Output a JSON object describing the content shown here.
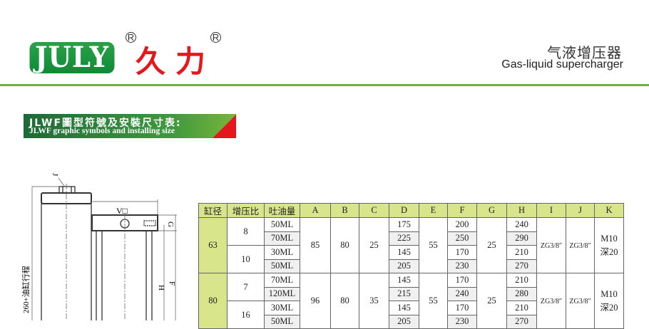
{
  "header": {
    "logo_text": "JULY",
    "logo_cn": "久力",
    "registered_mark": "R",
    "title_cn": "气液增压器",
    "title_en": "Gas-liquid supercharger"
  },
  "banner": {
    "line1": "JLWF圖型符號及安裝尺寸表:",
    "line2": "JLWF graphic symbols and installing size"
  },
  "drawing": {
    "label_j": "J",
    "label_v": "V□",
    "label_g": "G",
    "label_h": "H",
    "label_f": "F",
    "label_stroke": "260+油缸行程"
  },
  "table": {
    "headers": [
      "缸径",
      "增压比",
      "吐油量",
      "A",
      "B",
      "C",
      "D",
      "E",
      "F",
      "G",
      "H",
      "I",
      "J",
      "K"
    ],
    "groups": [
      {
        "bore": "63",
        "A": "85",
        "B": "80",
        "C": "25",
        "E": "55",
        "G": "25",
        "I": "ZG3/8″",
        "J": "ZG3/8″",
        "K1": "M10",
        "K2": "深20",
        "ratios": [
          {
            "ratio": "8",
            "rows": [
              [
                "50ML",
                "175",
                "200",
                "240"
              ],
              [
                "70ML",
                "225",
                "250",
                "290"
              ]
            ]
          },
          {
            "ratio": "10",
            "rows": [
              [
                "30ML",
                "145",
                "170",
                "210"
              ],
              [
                "50ML",
                "205",
                "230",
                "270"
              ]
            ]
          }
        ]
      },
      {
        "bore": "80",
        "A": "96",
        "B": "80",
        "C": "35",
        "E": "55",
        "G": "25",
        "I": "ZG3/8″",
        "J": "ZG3/8″",
        "K1": "M10",
        "K2": "深20",
        "ratios": [
          {
            "ratio": "7",
            "rows": [
              [
                "70ML",
                "145",
                "170",
                "210"
              ],
              [
                "120ML",
                "215",
                "240",
                "280"
              ]
            ]
          },
          {
            "ratio": "16",
            "rows": [
              [
                "30ML",
                "145",
                "170",
                "210"
              ],
              [
                "50ML",
                "205",
                "230",
                "270"
              ]
            ]
          }
        ]
      }
    ]
  },
  "colors": {
    "brand_green": "#1f9a44",
    "brand_red": "#e5161c",
    "header_fill": "#d9e58a",
    "rule": "#6bb33c"
  }
}
